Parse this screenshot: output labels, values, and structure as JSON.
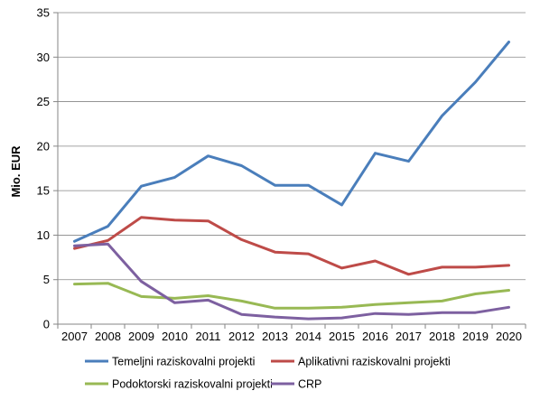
{
  "chart_data": {
    "type": "line",
    "ylabel": "Mio. EUR",
    "xlabel": "",
    "ylim": [
      0,
      35
    ],
    "yticks": [
      0,
      5,
      10,
      15,
      20,
      25,
      30,
      35
    ],
    "grid": "horizontal",
    "legend": "bottom",
    "categories": [
      "2007",
      "2008",
      "2009",
      "2010",
      "2011",
      "2012",
      "2013",
      "2014",
      "2015",
      "2016",
      "2017",
      "2018",
      "2019",
      "2020"
    ],
    "series": [
      {
        "name": "Temeljni raziskovalni projekti",
        "color": "#4a7ebb",
        "values": [
          9.3,
          11.0,
          15.5,
          16.5,
          18.9,
          17.8,
          15.6,
          15.6,
          13.4,
          19.2,
          18.3,
          23.4,
          27.2,
          31.7
        ]
      },
      {
        "name": "Aplikativni raziskovalni projekti",
        "color": "#be4b48",
        "values": [
          8.5,
          9.4,
          12.0,
          11.7,
          11.6,
          9.5,
          8.1,
          7.9,
          6.3,
          7.1,
          5.6,
          6.4,
          6.4,
          6.6
        ]
      },
      {
        "name": "Podoktorski raziskovalni projekti",
        "color": "#98b954",
        "values": [
          4.5,
          4.6,
          3.1,
          2.9,
          3.2,
          2.6,
          1.8,
          1.8,
          1.9,
          2.2,
          2.4,
          2.6,
          3.4,
          3.8
        ]
      },
      {
        "name": "CRP",
        "color": "#7d60a0",
        "values": [
          8.8,
          9.0,
          4.8,
          2.4,
          2.7,
          1.1,
          0.8,
          0.6,
          0.7,
          1.2,
          1.1,
          1.3,
          1.3,
          1.9
        ]
      }
    ]
  }
}
